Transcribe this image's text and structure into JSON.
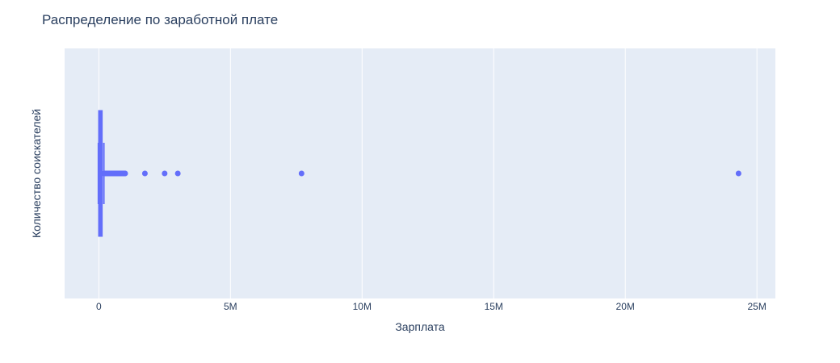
{
  "chart_data": {
    "type": "box",
    "orientation": "horizontal",
    "title": "Распределение по заработной плате",
    "xlabel": "Зарплата",
    "ylabel": "Количество соискателей",
    "xlim": [
      -1300000,
      25700000
    ],
    "x_ticks": [
      {
        "value": 0,
        "label": "0"
      },
      {
        "value": 5000000,
        "label": "5M"
      },
      {
        "value": 10000000,
        "label": "10M"
      },
      {
        "value": 15000000,
        "label": "15M"
      },
      {
        "value": 20000000,
        "label": "20M"
      },
      {
        "value": 25000000,
        "label": "25M"
      }
    ],
    "grid": true,
    "colors": {
      "series": "#636efa",
      "plot_bg": "#e5ecf6",
      "grid": "#ffffff",
      "text": "#2a3f5f"
    },
    "box": {
      "lower_fence": 0,
      "q1": 20000,
      "median": 60000,
      "q3": 100000,
      "upper_fence": 190000
    },
    "outliers": [
      200000,
      230000,
      260000,
      290000,
      320000,
      350000,
      380000,
      410000,
      440000,
      470000,
      500000,
      530000,
      560000,
      590000,
      620000,
      650000,
      680000,
      710000,
      740000,
      770000,
      800000,
      830000,
      860000,
      890000,
      920000,
      950000,
      980000,
      1000000,
      1750000,
      2500000,
      3000000,
      7700000,
      24300000
    ]
  }
}
